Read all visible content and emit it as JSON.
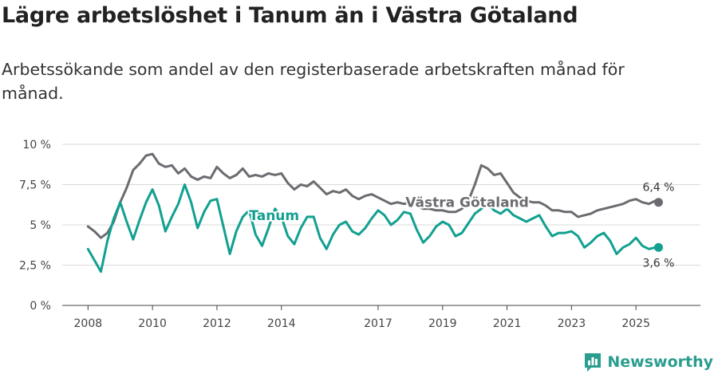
{
  "header": {
    "title": "Lägre arbetslöshet i Tanum än i Västra Götaland",
    "subtitle": "Arbetssökande som andel av den registerbaserade arbetskraften månad för månad."
  },
  "brand": {
    "name": "Newsworthy",
    "icon": "bar-chart-logo-icon",
    "color": "#2a9d8f"
  },
  "chart_data": {
    "type": "line",
    "title": "Lägre arbetslöshet i Tanum än i Västra Götaland",
    "subtitle": "Arbetssökande som andel av den registerbaserade arbetskraften månad för månad.",
    "xlabel": "",
    "ylabel": "",
    "xlim": [
      2007.2,
      2027.0
    ],
    "ylim": [
      0,
      10
    ],
    "y_ticks": [
      {
        "value": 0,
        "label": "0 %"
      },
      {
        "value": 2.5,
        "label": "2,5 %"
      },
      {
        "value": 5,
        "label": "5 %"
      },
      {
        "value": 7.5,
        "label": "7,5 %"
      },
      {
        "value": 10,
        "label": "10 %"
      }
    ],
    "x_ticks": [
      {
        "value": 2008,
        "label": "2008"
      },
      {
        "value": 2010,
        "label": "2010"
      },
      {
        "value": 2012,
        "label": "2012"
      },
      {
        "value": 2014,
        "label": "2014"
      },
      {
        "value": 2017,
        "label": "2017"
      },
      {
        "value": 2019,
        "label": "2019"
      },
      {
        "value": 2021,
        "label": "2021"
      },
      {
        "value": 2023,
        "label": "2023"
      },
      {
        "value": 2025,
        "label": "2025"
      }
    ],
    "grid": true,
    "series": [
      {
        "name": "Västra Götaland",
        "color": "#6b6b70",
        "end_label": "6,4 %",
        "x": [
          2008.0,
          2008.2,
          2008.4,
          2008.6,
          2008.8,
          2009.0,
          2009.2,
          2009.4,
          2009.6,
          2009.8,
          2010.0,
          2010.2,
          2010.4,
          2010.6,
          2010.8,
          2011.0,
          2011.2,
          2011.4,
          2011.6,
          2011.8,
          2012.0,
          2012.2,
          2012.4,
          2012.6,
          2012.8,
          2013.0,
          2013.2,
          2013.4,
          2013.6,
          2013.8,
          2014.0,
          2014.2,
          2014.4,
          2014.6,
          2014.8,
          2015.0,
          2015.2,
          2015.4,
          2015.6,
          2015.8,
          2016.0,
          2016.2,
          2016.4,
          2016.6,
          2016.8,
          2017.0,
          2017.2,
          2017.4,
          2017.6,
          2017.8,
          2018.0,
          2018.2,
          2018.4,
          2018.6,
          2018.8,
          2019.0,
          2019.2,
          2019.4,
          2019.6,
          2019.8,
          2020.0,
          2020.2,
          2020.4,
          2020.6,
          2020.8,
          2021.0,
          2021.2,
          2021.4,
          2021.6,
          2021.8,
          2022.0,
          2022.2,
          2022.4,
          2022.6,
          2022.8,
          2023.0,
          2023.2,
          2023.4,
          2023.6,
          2023.8,
          2024.0,
          2024.2,
          2024.4,
          2024.6,
          2024.8,
          2025.0,
          2025.2,
          2025.4,
          2025.6,
          2025.7
        ],
        "values": [
          4.9,
          4.6,
          4.2,
          4.5,
          5.2,
          6.4,
          7.3,
          8.4,
          8.8,
          9.3,
          9.4,
          8.8,
          8.6,
          8.7,
          8.2,
          8.5,
          8.0,
          7.8,
          8.0,
          7.9,
          8.6,
          8.2,
          7.9,
          8.1,
          8.5,
          8.0,
          8.1,
          8.0,
          8.2,
          8.1,
          8.2,
          7.6,
          7.2,
          7.5,
          7.4,
          7.7,
          7.3,
          6.9,
          7.1,
          7.0,
          7.2,
          6.8,
          6.6,
          6.8,
          6.9,
          6.7,
          6.5,
          6.3,
          6.4,
          6.3,
          6.4,
          6.2,
          6.0,
          6.0,
          5.9,
          5.9,
          5.8,
          5.8,
          6.0,
          6.5,
          7.5,
          8.7,
          8.5,
          8.1,
          8.2,
          7.6,
          7.0,
          6.7,
          6.5,
          6.4,
          6.4,
          6.2,
          5.9,
          5.9,
          5.8,
          5.8,
          5.5,
          5.6,
          5.7,
          5.9,
          6.0,
          6.1,
          6.2,
          6.3,
          6.5,
          6.6,
          6.4,
          6.3,
          6.5,
          6.4
        ]
      },
      {
        "name": "Tanum",
        "color": "#12a090",
        "end_label": "3,6 %",
        "x": [
          2008.0,
          2008.2,
          2008.4,
          2008.6,
          2008.8,
          2009.0,
          2009.2,
          2009.4,
          2009.6,
          2009.8,
          2010.0,
          2010.2,
          2010.4,
          2010.6,
          2010.8,
          2011.0,
          2011.2,
          2011.4,
          2011.6,
          2011.8,
          2012.0,
          2012.2,
          2012.4,
          2012.6,
          2012.8,
          2013.0,
          2013.2,
          2013.4,
          2013.6,
          2013.8,
          2014.0,
          2014.2,
          2014.4,
          2014.6,
          2014.8,
          2015.0,
          2015.2,
          2015.4,
          2015.6,
          2015.8,
          2016.0,
          2016.2,
          2016.4,
          2016.6,
          2016.8,
          2017.0,
          2017.2,
          2017.4,
          2017.6,
          2017.8,
          2018.0,
          2018.2,
          2018.4,
          2018.6,
          2018.8,
          2019.0,
          2019.2,
          2019.4,
          2019.6,
          2019.8,
          2020.0,
          2020.2,
          2020.4,
          2020.6,
          2020.8,
          2021.0,
          2021.2,
          2021.4,
          2021.6,
          2021.8,
          2022.0,
          2022.2,
          2022.4,
          2022.6,
          2022.8,
          2023.0,
          2023.2,
          2023.4,
          2023.6,
          2023.8,
          2024.0,
          2024.2,
          2024.4,
          2024.6,
          2024.8,
          2025.0,
          2025.2,
          2025.4,
          2025.6,
          2025.7
        ],
        "values": [
          3.5,
          2.8,
          2.1,
          4.0,
          5.4,
          6.4,
          5.2,
          4.1,
          5.3,
          6.4,
          7.2,
          6.2,
          4.6,
          5.5,
          6.3,
          7.5,
          6.4,
          4.8,
          5.8,
          6.5,
          6.6,
          4.9,
          3.2,
          4.6,
          5.5,
          5.9,
          4.4,
          3.7,
          4.8,
          6.0,
          5.5,
          4.3,
          3.8,
          4.8,
          5.5,
          5.5,
          4.2,
          3.5,
          4.4,
          5.0,
          5.2,
          4.6,
          4.4,
          4.8,
          5.4,
          5.9,
          5.6,
          5.0,
          5.3,
          5.8,
          5.7,
          4.7,
          3.9,
          4.3,
          4.9,
          5.2,
          5.0,
          4.3,
          4.5,
          5.1,
          5.7,
          6.0,
          6.3,
          5.9,
          5.7,
          6.0,
          5.6,
          5.4,
          5.2,
          5.4,
          5.6,
          4.9,
          4.3,
          4.5,
          4.5,
          4.6,
          4.3,
          3.6,
          3.9,
          4.3,
          4.5,
          4.0,
          3.2,
          3.6,
          3.8,
          4.2,
          3.7,
          3.5,
          3.6,
          3.6
        ]
      }
    ]
  }
}
